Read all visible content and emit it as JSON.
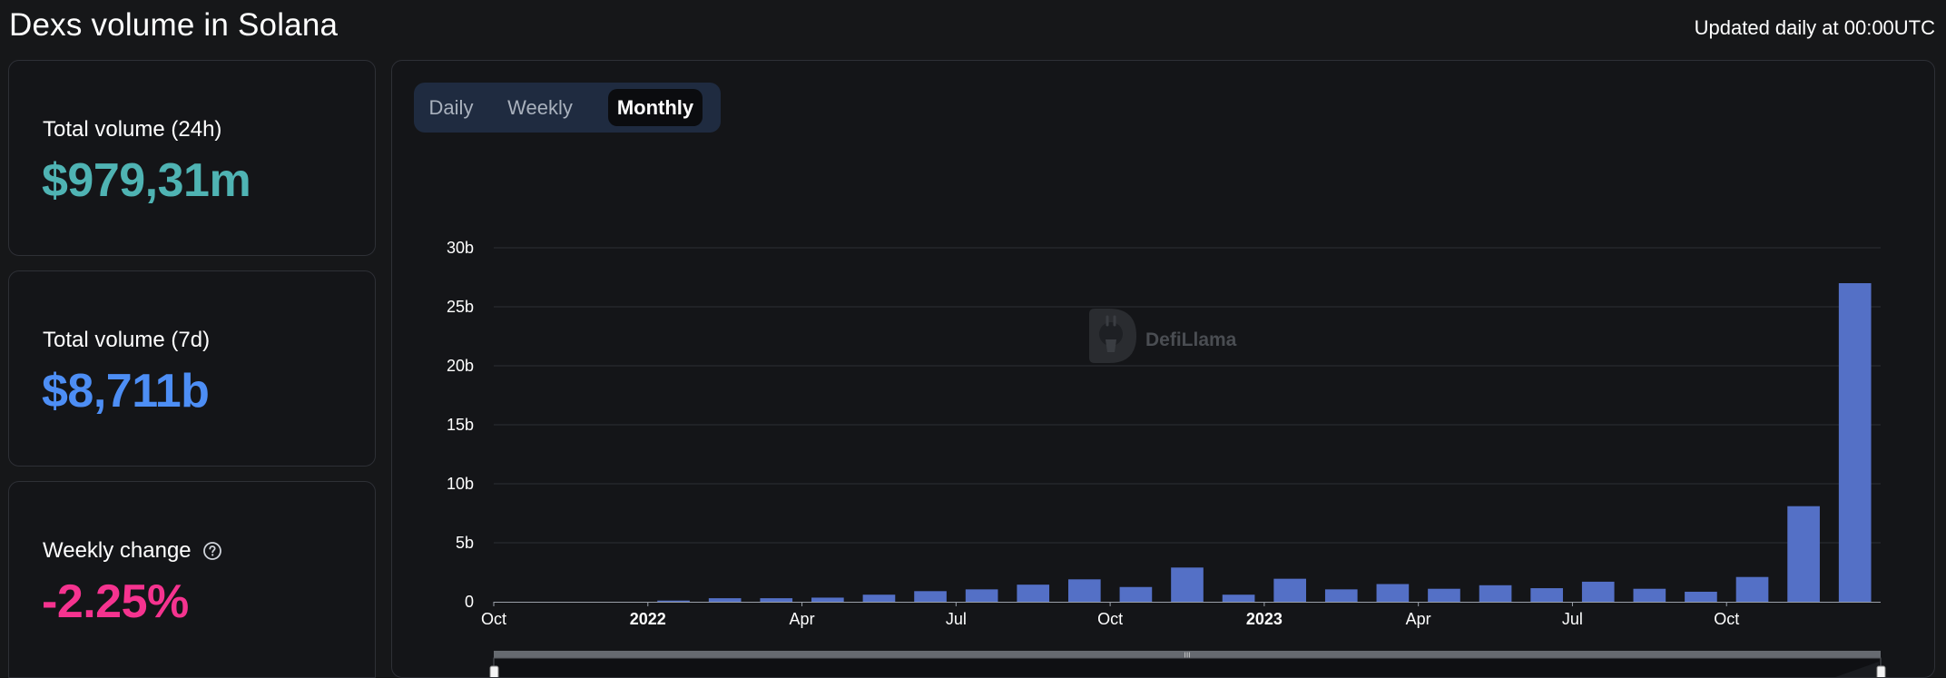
{
  "header": {
    "title": "Dexs volume in Solana",
    "updated": "Updated daily at 00:00UTC"
  },
  "stats": [
    {
      "label": "Total volume (24h)",
      "value": "$979,31m",
      "color": "#4fb3b3"
    },
    {
      "label": "Total volume (7d)",
      "value": "$8,711b",
      "color": "#4d8ef5"
    },
    {
      "label": "Weekly change",
      "value": "-2.25%",
      "color": "#f5338f"
    }
  ],
  "toggle": {
    "options": [
      "Daily",
      "Weekly",
      "Monthly"
    ],
    "selected": "Monthly"
  },
  "watermark": "DefiLlama",
  "chart_data": {
    "type": "bar",
    "x_tick_labels": [
      "Oct",
      "2022",
      "Apr",
      "Jul",
      "Oct",
      "2023",
      "Apr",
      "Jul",
      "Oct"
    ],
    "categories": [
      "2021-10",
      "2021-11",
      "2021-12",
      "2022-01",
      "2022-02",
      "2022-03",
      "2022-04",
      "2022-05",
      "2022-06",
      "2022-07",
      "2022-08",
      "2022-09",
      "2022-10",
      "2022-11",
      "2022-12",
      "2023-01",
      "2023-02",
      "2023-03",
      "2023-04",
      "2023-05",
      "2023-06",
      "2023-07",
      "2023-08",
      "2023-09",
      "2023-10",
      "2023-11",
      "2023-12"
    ],
    "values": [
      0,
      0,
      0,
      0.1,
      0.3,
      0.3,
      0.35,
      0.6,
      0.9,
      1.05,
      1.45,
      1.9,
      1.25,
      2.9,
      0.6,
      1.95,
      1.05,
      1.5,
      1.1,
      1.4,
      1.15,
      1.7,
      1.1,
      0.85,
      2.1,
      8.1,
      27.0
    ],
    "y_ticks": [
      "0",
      "5b",
      "10b",
      "15b",
      "20b",
      "25b",
      "30b"
    ],
    "ylim": [
      0,
      30
    ],
    "y_unit": "b",
    "bar_color": "#5470c6",
    "grid": true
  }
}
